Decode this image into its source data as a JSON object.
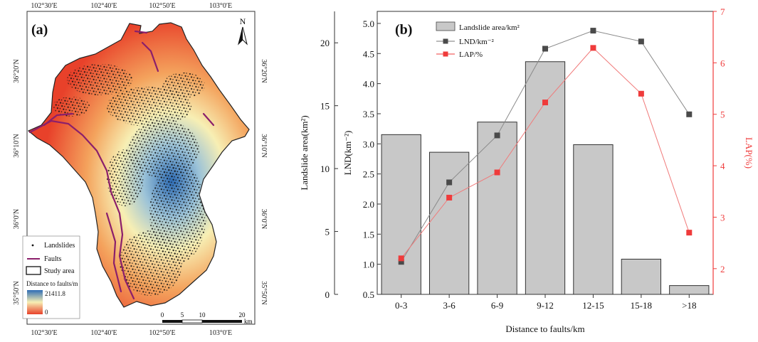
{
  "panel_a": {
    "label": "(a)",
    "north": "N",
    "top_ticks": [
      "102°30′E",
      "102°40′E",
      "102°50′E",
      "103°0′E"
    ],
    "bottom_ticks": [
      "102°30′E",
      "102°40′E",
      "102°50′E",
      "103°0′E"
    ],
    "left_ticks": [
      "36°20′N",
      "36°10′N",
      "36°0′N",
      "35°50′N"
    ],
    "right_ticks": [
      "36°20′N",
      "36°10′N",
      "36°0′N",
      "35°50′N"
    ],
    "legend": {
      "landslides": "Landslides",
      "faults": "Faults",
      "study_area": "Study area",
      "distance_title": "Distance to faults/m",
      "max_value": "21411.8",
      "min_value": "0"
    },
    "scalebar": {
      "ticks": [
        "0",
        "5",
        "10",
        "20"
      ],
      "unit": "km"
    },
    "colors": {
      "near": "#e8412a",
      "mid": "#f7efb4",
      "far": "#2f6db5",
      "fault": "#8b1f6b"
    }
  },
  "chart_data": {
    "type": "bar",
    "label": "(b)",
    "categories": [
      "0-3",
      "3-6",
      "6-9",
      "9-12",
      "12-15",
      "15-18",
      ">18"
    ],
    "xlabel": "Distance to faults/km",
    "series": [
      {
        "name": "Landslide area/km²",
        "kind": "bar",
        "axis": "left_outer",
        "values": [
          12.7,
          11.3,
          13.7,
          18.5,
          11.9,
          2.8,
          0.7
        ],
        "color": "#c8c8c8"
      },
      {
        "name": "LND/km⁻²",
        "kind": "line",
        "axis": "left_inner",
        "values": [
          1.04,
          2.36,
          3.14,
          4.58,
          4.88,
          4.7,
          3.49
        ],
        "color": "#4a4a4a"
      },
      {
        "name": "LAP/%",
        "kind": "line",
        "axis": "right",
        "values": [
          2.2,
          3.38,
          3.87,
          5.23,
          6.29,
          5.4,
          2.7
        ],
        "color": "#ef3b3b"
      }
    ],
    "axes": {
      "left_outer": {
        "label": "Landslide area(km²)",
        "ylim": [
          0,
          22.5
        ],
        "ticks": [
          "0",
          "5",
          "10",
          "15",
          "20"
        ],
        "tick_values": [
          0,
          5,
          10,
          15,
          20
        ]
      },
      "left_inner": {
        "label": "LND(km⁻²)",
        "ylim": [
          0.5,
          5.2
        ],
        "ticks": [
          "0.5",
          "1.0",
          "1.5",
          "2.0",
          "2.5",
          "3.0",
          "3.5",
          "4.0",
          "4.5",
          "5.0"
        ],
        "tick_values": [
          0.5,
          1.0,
          1.5,
          2.0,
          2.5,
          3.0,
          3.5,
          4.0,
          4.5,
          5.0
        ]
      },
      "right": {
        "label": "LAP(%)",
        "ylim": [
          1.5,
          7
        ],
        "ticks": [
          "2",
          "3",
          "4",
          "5",
          "6",
          "7"
        ],
        "tick_values": [
          2,
          3,
          4,
          5,
          6,
          7
        ]
      }
    },
    "legend": {
      "position": "top-left",
      "entries": [
        "Landslide area/km²",
        "LND/km⁻²",
        "LAP/%"
      ]
    }
  }
}
